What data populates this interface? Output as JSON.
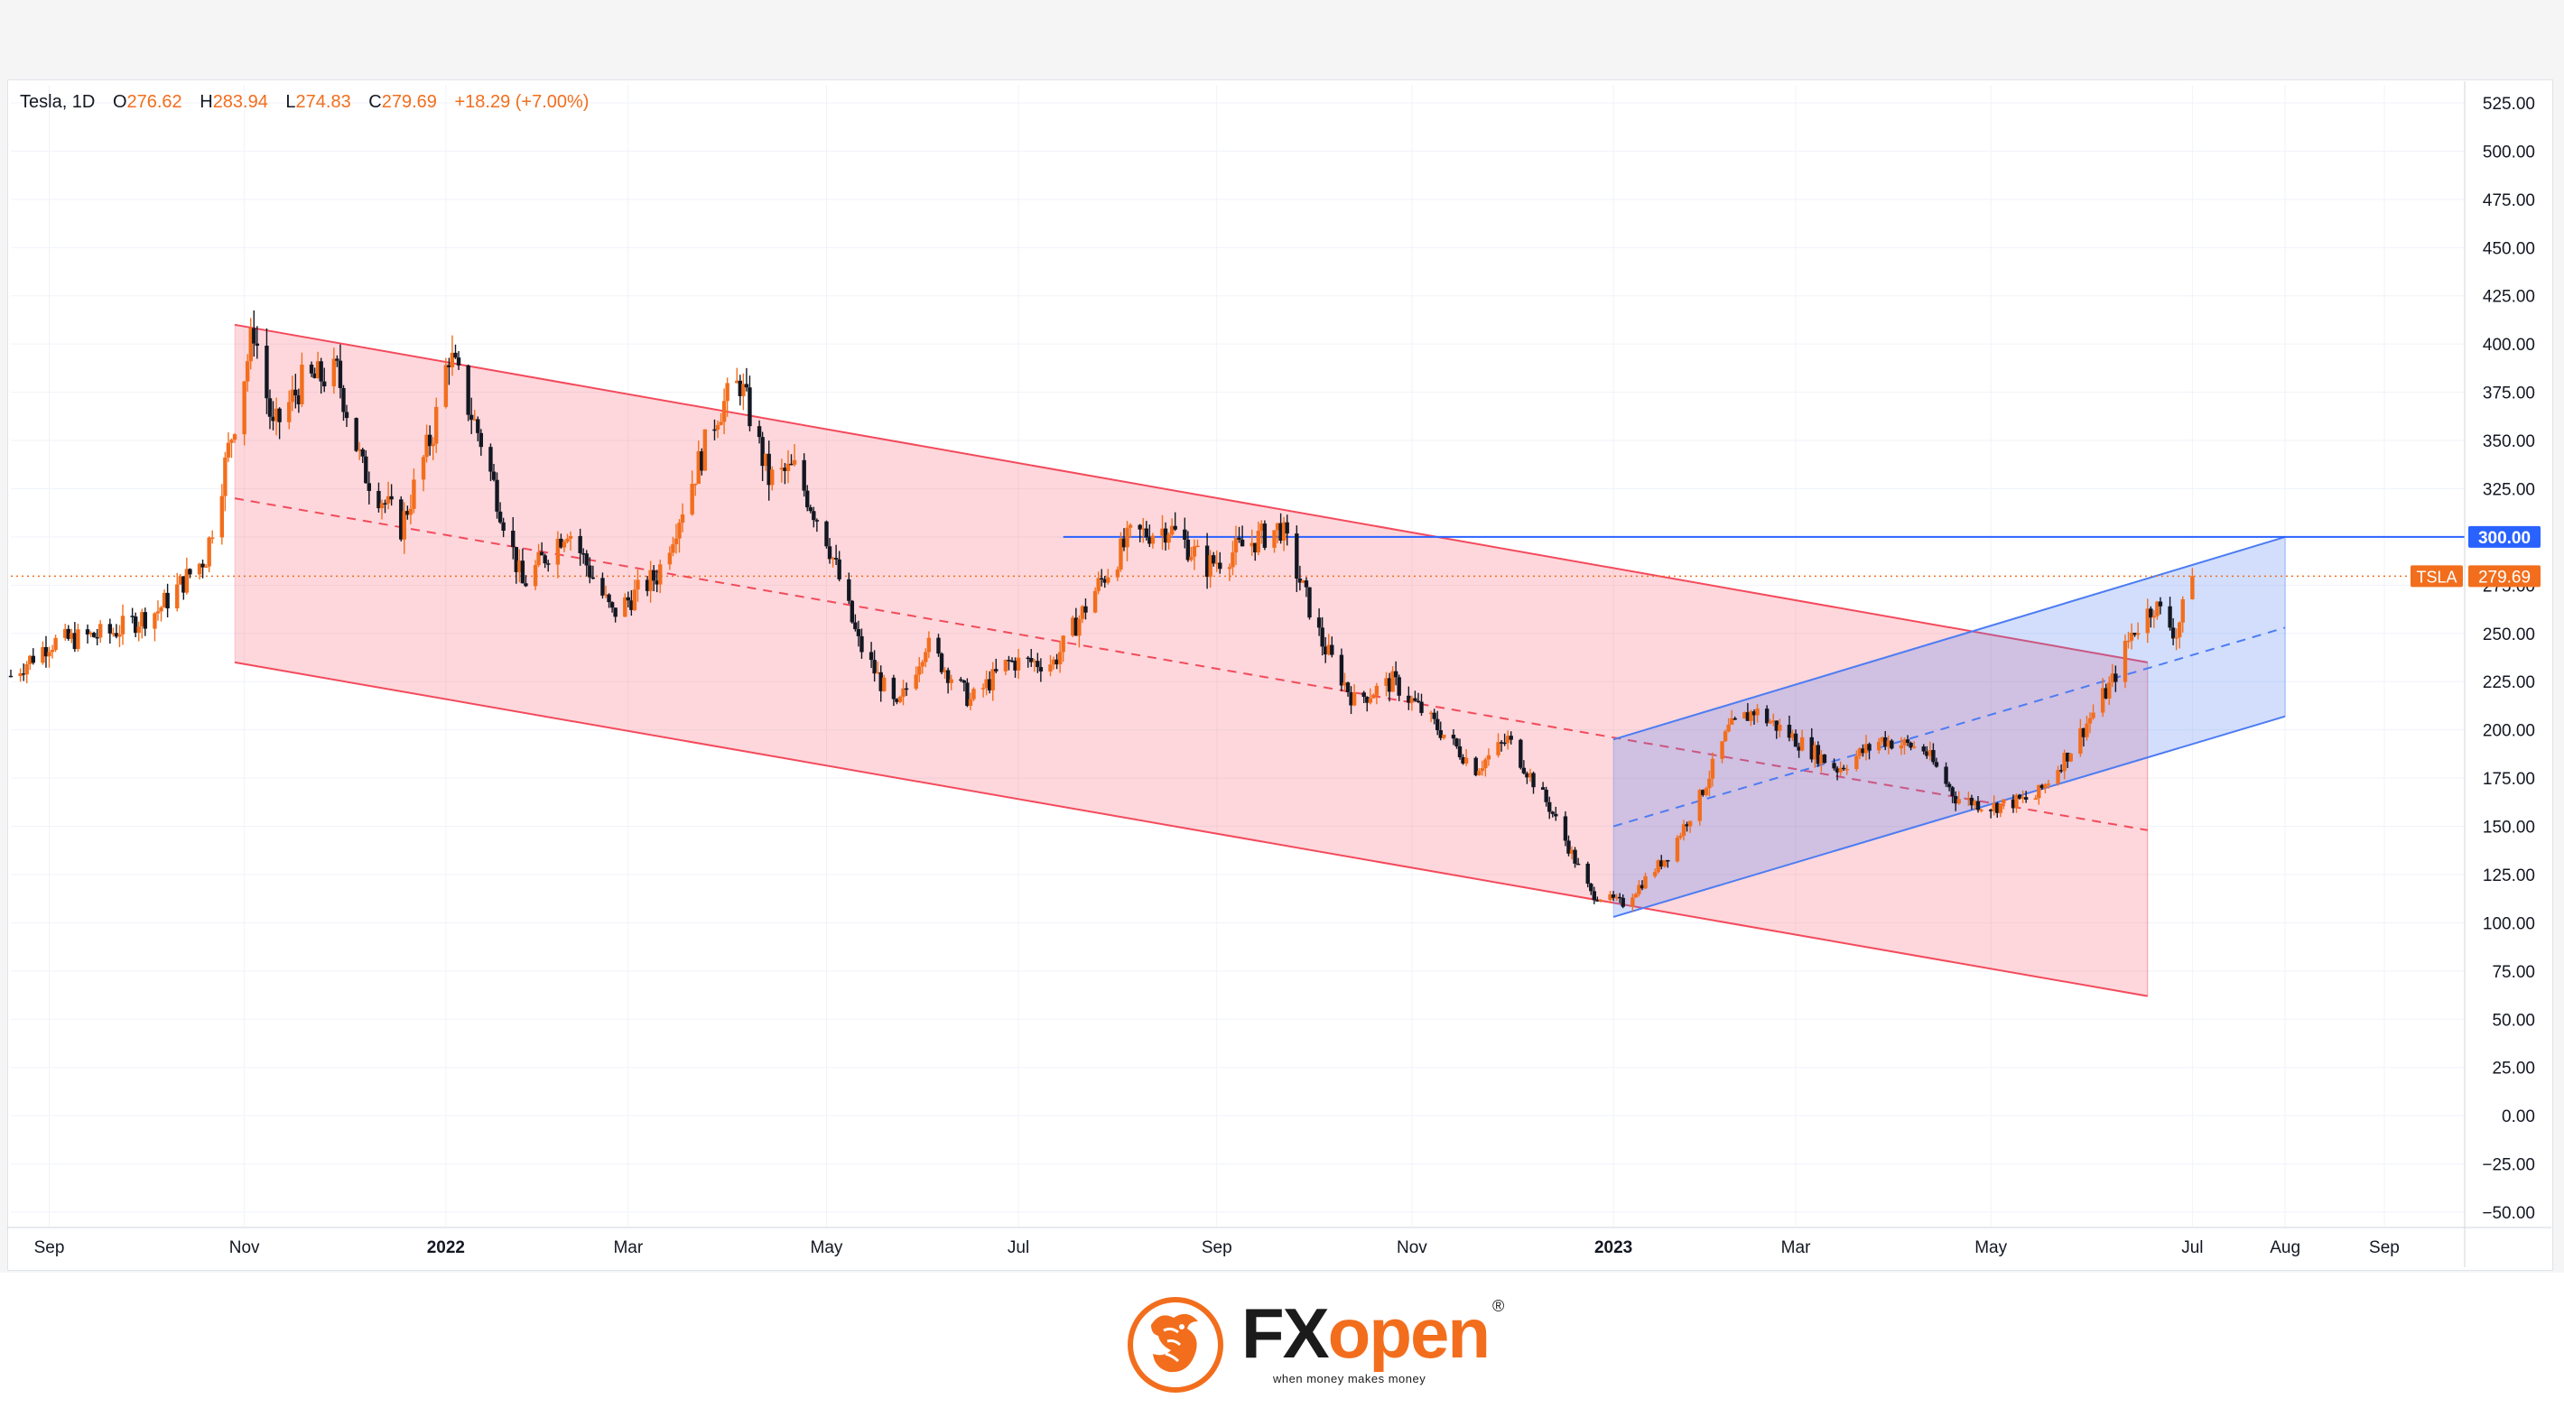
{
  "legend": {
    "symbol": "Tesla, 1D",
    "open_key": "O",
    "open": "276.62",
    "high_key": "H",
    "high": "283.94",
    "low_key": "L",
    "low": "274.83",
    "close_key": "C",
    "close": "279.69",
    "change": "+18.29 (+7.00%)"
  },
  "colors": {
    "up_candle": "#f26e1d",
    "down_candle": "#131722",
    "down_channel": "#f44a5c",
    "up_channel": "#4c7cf3",
    "price_label_bg": "#f26e1d",
    "level_label_bg": "#2962ff"
  },
  "chart_data": {
    "type": "candlestick",
    "symbol": "TSLA",
    "interval": "1D",
    "ylim": [
      -50,
      525
    ],
    "y_ticks": [
      525,
      500,
      475,
      450,
      425,
      400,
      375,
      350,
      325,
      300,
      275,
      250,
      225,
      200,
      175,
      150,
      125,
      100,
      75,
      50,
      25,
      0,
      -25,
      -50
    ],
    "y_tick_labels": [
      "525.00",
      "500.00",
      "475.00",
      "450.00",
      "425.00",
      "400.00",
      "375.00",
      "350.00",
      "325.00",
      "300.00",
      "275.00",
      "250.00",
      "225.00",
      "200.00",
      "175.00",
      "150.00",
      "125.00",
      "100.00",
      "75.00",
      "50.00",
      "25.00",
      "0.00",
      "−25.00",
      "−50.00"
    ],
    "x_axis": {
      "start": "2021-08-20",
      "end": "2023-09-25",
      "ticks": [
        {
          "date": "2021-09-01",
          "label": "Sep",
          "bold": false
        },
        {
          "date": "2021-11-01",
          "label": "Nov",
          "bold": false
        },
        {
          "date": "2022-01-03",
          "label": "2022",
          "bold": true
        },
        {
          "date": "2022-03-01",
          "label": "Mar",
          "bold": false
        },
        {
          "date": "2022-05-02",
          "label": "May",
          "bold": false
        },
        {
          "date": "2022-07-01",
          "label": "Jul",
          "bold": false
        },
        {
          "date": "2022-09-01",
          "label": "Sep",
          "bold": false
        },
        {
          "date": "2022-11-01",
          "label": "Nov",
          "bold": false
        },
        {
          "date": "2023-01-03",
          "label": "2023",
          "bold": true
        },
        {
          "date": "2023-03-01",
          "label": "Mar",
          "bold": false
        },
        {
          "date": "2023-05-01",
          "label": "May",
          "bold": false
        },
        {
          "date": "2023-07-03",
          "label": "Jul",
          "bold": false
        },
        {
          "date": "2023-08-01",
          "label": "Aug",
          "bold": false
        },
        {
          "date": "2023-09-01",
          "label": "Sep",
          "bold": false
        }
      ]
    },
    "price_path": [
      {
        "date": "2021-08-20",
        "close": 228
      },
      {
        "date": "2021-09-01",
        "close": 245
      },
      {
        "date": "2021-09-20",
        "close": 250
      },
      {
        "date": "2021-10-05",
        "close": 262
      },
      {
        "date": "2021-10-20",
        "close": 290
      },
      {
        "date": "2021-10-27",
        "close": 345
      },
      {
        "date": "2021-11-04",
        "close": 408
      },
      {
        "date": "2021-11-10",
        "close": 355
      },
      {
        "date": "2021-11-19",
        "close": 380
      },
      {
        "date": "2021-11-30",
        "close": 385
      },
      {
        "date": "2021-12-08",
        "close": 335
      },
      {
        "date": "2021-12-20",
        "close": 305
      },
      {
        "date": "2021-12-30",
        "close": 355
      },
      {
        "date": "2022-01-04",
        "close": 395
      },
      {
        "date": "2022-01-14",
        "close": 350
      },
      {
        "date": "2022-01-27",
        "close": 275
      },
      {
        "date": "2022-02-10",
        "close": 305
      },
      {
        "date": "2022-02-24",
        "close": 260
      },
      {
        "date": "2022-03-10",
        "close": 280
      },
      {
        "date": "2022-03-29",
        "close": 365
      },
      {
        "date": "2022-04-05",
        "close": 380
      },
      {
        "date": "2022-04-14",
        "close": 330
      },
      {
        "date": "2022-04-22",
        "close": 335
      },
      {
        "date": "2022-05-02",
        "close": 300
      },
      {
        "date": "2022-05-12",
        "close": 245
      },
      {
        "date": "2022-05-24",
        "close": 210
      },
      {
        "date": "2022-06-02",
        "close": 245
      },
      {
        "date": "2022-06-16",
        "close": 215
      },
      {
        "date": "2022-06-28",
        "close": 235
      },
      {
        "date": "2022-07-12",
        "close": 235
      },
      {
        "date": "2022-07-26",
        "close": 275
      },
      {
        "date": "2022-08-05",
        "close": 300
      },
      {
        "date": "2022-08-17",
        "close": 305
      },
      {
        "date": "2022-08-29",
        "close": 285
      },
      {
        "date": "2022-09-09",
        "close": 295
      },
      {
        "date": "2022-09-21",
        "close": 305
      },
      {
        "date": "2022-10-04",
        "close": 245
      },
      {
        "date": "2022-10-14",
        "close": 215
      },
      {
        "date": "2022-10-26",
        "close": 225
      },
      {
        "date": "2022-11-04",
        "close": 210
      },
      {
        "date": "2022-11-21",
        "close": 180
      },
      {
        "date": "2022-12-01",
        "close": 195
      },
      {
        "date": "2022-12-14",
        "close": 160
      },
      {
        "date": "2022-12-27",
        "close": 115
      },
      {
        "date": "2023-01-06",
        "close": 110
      },
      {
        "date": "2023-01-20",
        "close": 135
      },
      {
        "date": "2023-01-30",
        "close": 165
      },
      {
        "date": "2023-02-08",
        "close": 200
      },
      {
        "date": "2023-02-16",
        "close": 210
      },
      {
        "date": "2023-03-01",
        "close": 195
      },
      {
        "date": "2023-03-14",
        "close": 180
      },
      {
        "date": "2023-03-28",
        "close": 195
      },
      {
        "date": "2023-04-10",
        "close": 190
      },
      {
        "date": "2023-04-20",
        "close": 165
      },
      {
        "date": "2023-05-01",
        "close": 160
      },
      {
        "date": "2023-05-15",
        "close": 165
      },
      {
        "date": "2023-05-26",
        "close": 190
      },
      {
        "date": "2023-06-08",
        "close": 225
      },
      {
        "date": "2023-06-14",
        "close": 250
      },
      {
        "date": "2023-06-21",
        "close": 265
      },
      {
        "date": "2023-06-28",
        "close": 250
      },
      {
        "date": "2023-07-03",
        "close": 279.69
      }
    ],
    "descending_channel": {
      "upper": [
        {
          "date": "2021-10-29",
          "value": 410
        },
        {
          "date": "2023-06-19",
          "value": 235
        }
      ],
      "middle": [
        {
          "date": "2021-10-29",
          "value": 320
        },
        {
          "date": "2023-06-19",
          "value": 148
        }
      ],
      "lower": [
        {
          "date": "2021-10-29",
          "value": 235
        },
        {
          "date": "2023-06-19",
          "value": 62
        }
      ]
    },
    "ascending_channel": {
      "upper": [
        {
          "date": "2023-01-03",
          "value": 195
        },
        {
          "date": "2023-08-01",
          "value": 300
        }
      ],
      "middle": [
        {
          "date": "2023-01-03",
          "value": 150
        },
        {
          "date": "2023-08-01",
          "value": 253
        }
      ],
      "lower": [
        {
          "date": "2023-01-03",
          "value": 103
        },
        {
          "date": "2023-08-01",
          "value": 207
        }
      ]
    },
    "horizontal_level": {
      "value": 300,
      "from": "2022-07-15",
      "label": "300.00"
    },
    "last_price": {
      "value": 279.69,
      "ticker": "TSLA",
      "label": "279.69"
    }
  },
  "footer": {
    "brand_fx": "FX",
    "brand_open": "open",
    "reg": "®",
    "tagline": "when money makes money"
  }
}
